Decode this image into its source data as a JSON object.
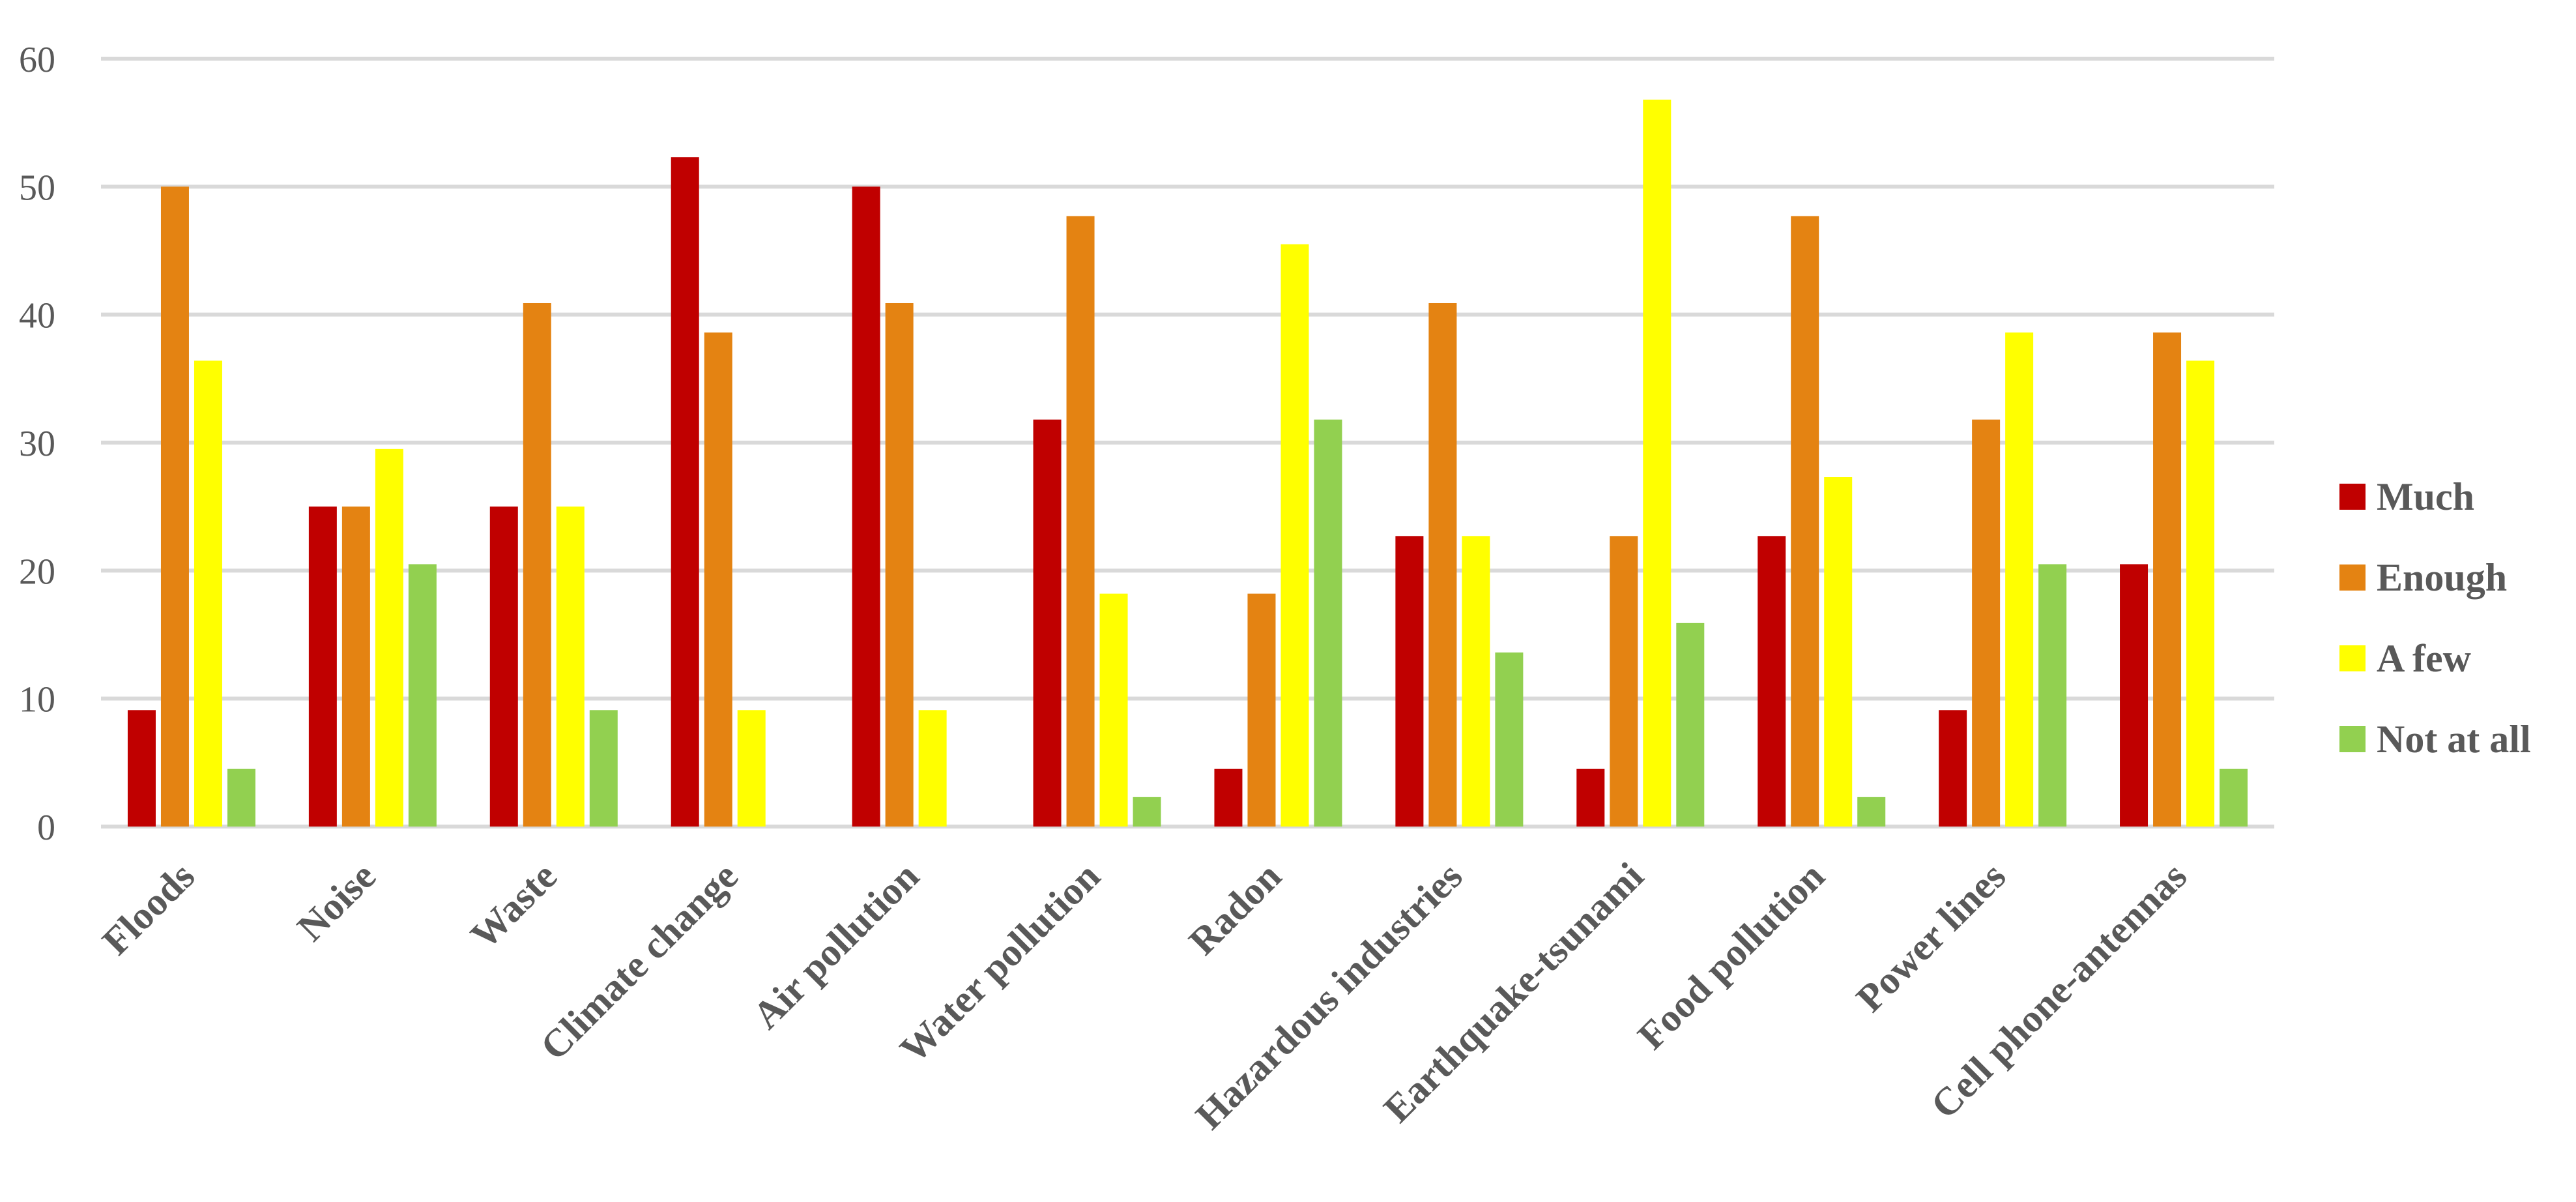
{
  "chart_data": {
    "type": "bar",
    "categories": [
      "Floods",
      "Noise",
      "Waste",
      "Climate change",
      "Air pollution",
      "Water pollution",
      "Radon",
      "Hazardous industries",
      "Earthquake-tsunami",
      "Food pollution",
      "Power lines",
      "Cell phone-antennas"
    ],
    "series": [
      {
        "name": "Much",
        "color": "#c00000",
        "values": [
          9.1,
          25.0,
          25.0,
          52.3,
          50.0,
          31.8,
          4.5,
          22.7,
          4.5,
          22.7,
          9.1,
          20.5
        ]
      },
      {
        "name": "Enough",
        "color": "#e48312",
        "values": [
          50.0,
          25.0,
          40.9,
          38.6,
          40.9,
          47.7,
          18.2,
          40.9,
          22.7,
          47.7,
          31.8,
          38.6
        ]
      },
      {
        "name": "A few",
        "color": "#ffff00",
        "values": [
          36.4,
          29.5,
          25.0,
          9.1,
          9.1,
          18.2,
          45.5,
          22.7,
          56.8,
          27.3,
          38.6,
          36.4
        ]
      },
      {
        "name": "Not at all",
        "color": "#92d050",
        "values": [
          4.5,
          20.5,
          9.1,
          0,
          0,
          2.3,
          31.8,
          13.6,
          15.9,
          2.3,
          20.5,
          4.5
        ]
      }
    ],
    "y_ticks": [
      "0",
      "10",
      "20",
      "30",
      "40",
      "50",
      "60"
    ],
    "ylim": [
      0,
      60
    ],
    "grid": true,
    "legend_position": "right",
    "title": "",
    "xlabel": "",
    "ylabel": ""
  }
}
